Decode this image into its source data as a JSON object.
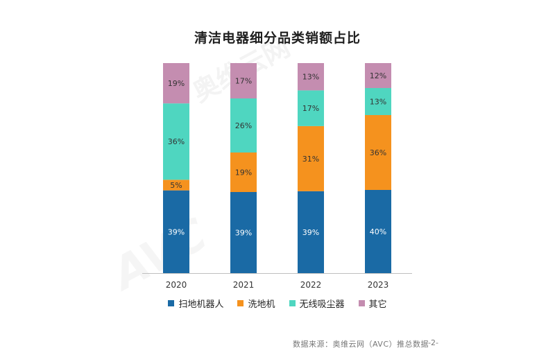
{
  "chart_data": {
    "type": "bar",
    "stacked": true,
    "title": "清洁电器细分品类销额占比",
    "categories": [
      "2020",
      "2021",
      "2022",
      "2023"
    ],
    "series": [
      {
        "name": "扫地机器人",
        "values": [
          39,
          39,
          39,
          40
        ],
        "labels": [
          "39%",
          "39%",
          "39%",
          "40%"
        ],
        "color": "#1a6aa5"
      },
      {
        "name": "洗地机",
        "values": [
          5,
          19,
          31,
          36
        ],
        "labels": [
          "5%",
          "19%",
          "31%",
          "36%"
        ],
        "color": "#f5921e"
      },
      {
        "name": "无线吸尘器",
        "values": [
          36,
          26,
          17,
          13
        ],
        "labels": [
          "36%",
          "26%",
          "17%",
          "13%"
        ],
        "color": "#4fd6c0"
      },
      {
        "name": "其它",
        "values": [
          19,
          17,
          13,
          12
        ],
        "labels": [
          "19%",
          "17%",
          "13%",
          "12%"
        ],
        "color": "#c48db0"
      }
    ],
    "legend_position": "bottom",
    "grid": false
  },
  "source_text": "数据来源：奥维云网（AVC）推总数据",
  "page_number": "-2-",
  "watermark": {
    "cn": "奥维云网",
    "en": "AVC"
  }
}
